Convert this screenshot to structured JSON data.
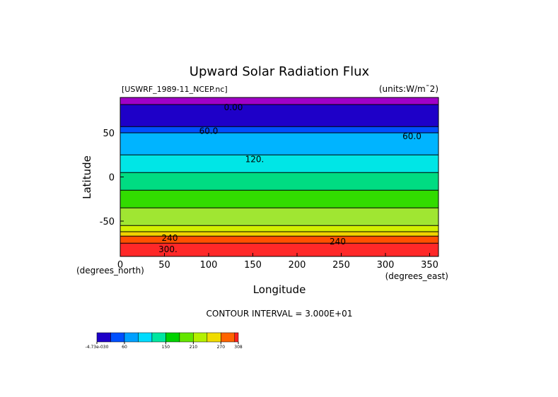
{
  "chart_data": {
    "type": "contour",
    "title": "Upward Solar Radiation Flux",
    "subtitle_left": "[USWRF_1989-11_NCEP.nc]",
    "subtitle_right": "(units:W/m¯2)",
    "x_label": "Longitude",
    "y_label": "Latitude",
    "x_unit": "(degrees_east)",
    "y_unit": "(degrees_north)",
    "contour_interval": "CONTOUR INTERVAL = 3.000E+01",
    "xlim": [
      0,
      360
    ],
    "xticks": [
      0,
      50,
      100,
      150,
      200,
      250,
      300,
      350
    ],
    "ylim": [
      -90,
      90
    ],
    "yticks": [
      -50,
      0,
      50
    ],
    "bands": {
      "lat_edges": [
        90,
        82,
        57,
        50,
        25,
        5,
        -15,
        -35,
        -55,
        -62,
        -67,
        -75,
        -90
      ],
      "colors": [
        "#a000c8",
        "#1e00c8",
        "#0050ff",
        "#00b4ff",
        "#00e6e6",
        "#00dc82",
        "#32dc00",
        "#a0e632",
        "#d2f000",
        "#f0d200",
        "#ff5000",
        "#ff2828"
      ]
    },
    "contour_labels": [
      {
        "text": "0.00",
        "lon": 128,
        "lat": 79
      },
      {
        "text": "60.0",
        "lon": 100,
        "lat": 52
      },
      {
        "text": "60.0",
        "lon": 330,
        "lat": 46
      },
      {
        "text": "120.",
        "lon": 152,
        "lat": 20
      },
      {
        "text": "240",
        "lon": 56,
        "lat": -69
      },
      {
        "text": "240",
        "lon": 246,
        "lat": -73
      },
      {
        "text": "300.",
        "lon": 54,
        "lat": -82
      }
    ],
    "colorbar": {
      "bounds": [
        0,
        30,
        60,
        90,
        120,
        150,
        180,
        210,
        240,
        270,
        300,
        308
      ],
      "colors": [
        "#1e00c8",
        "#0050ff",
        "#00a0ff",
        "#00dcff",
        "#00e6a0",
        "#00d200",
        "#64e600",
        "#b4f000",
        "#f0dc00",
        "#ff6400",
        "#ff2020"
      ],
      "ticks": [
        {
          "value": 0,
          "label": "-4.73e-030"
        },
        60,
        150,
        210,
        270,
        308
      ]
    }
  }
}
